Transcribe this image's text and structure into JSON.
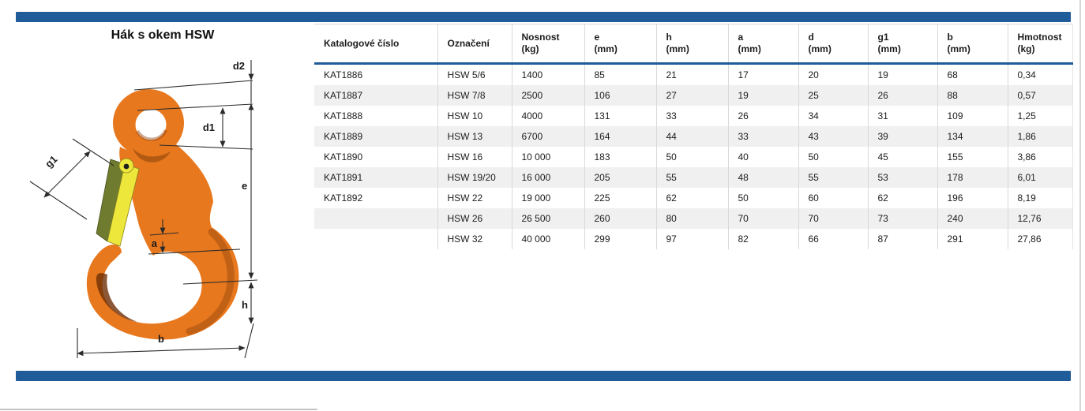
{
  "page": {
    "title": "Hák s okem HSW"
  },
  "diagram": {
    "labels": {
      "d2": "d2",
      "d1": "d1",
      "e": "e",
      "g1": "g1",
      "a": "a",
      "h": "h",
      "b": "b"
    },
    "colors": {
      "hook_orange": "#e8781e",
      "hook_shadow": "#7c3a06",
      "latch_yellow": "#ece73a",
      "latch_olive": "#6f7c2f",
      "dimension_line": "#2b2b2b"
    }
  },
  "table": {
    "headers": [
      {
        "line1": "Katalogové číslo",
        "line2": ""
      },
      {
        "line1": "Označení",
        "line2": ""
      },
      {
        "line1": "Nosnost",
        "line2": "(kg)"
      },
      {
        "line1": "e",
        "line2": "(mm)"
      },
      {
        "line1": "h",
        "line2": "(mm)"
      },
      {
        "line1": "a",
        "line2": "(mm)"
      },
      {
        "line1": "d",
        "line2": "(mm)"
      },
      {
        "line1": "g1",
        "line2": "(mm)"
      },
      {
        "line1": "b",
        "line2": "(mm)"
      },
      {
        "line1": "Hmotnost",
        "line2": "(kg)"
      }
    ],
    "rows": [
      [
        "KAT1886",
        "HSW 5/6",
        "1400",
        "85",
        "21",
        "17",
        "20",
        "19",
        "68",
        "0,34"
      ],
      [
        "KAT1887",
        "HSW 7/8",
        "2500",
        "106",
        "27",
        "19",
        "25",
        "26",
        "88",
        "0,57"
      ],
      [
        "KAT1888",
        "HSW 10",
        "4000",
        "131",
        "33",
        "26",
        "34",
        "31",
        "109",
        "1,25"
      ],
      [
        "KAT1889",
        "HSW 13",
        "6700",
        "164",
        "44",
        "33",
        "43",
        "39",
        "134",
        "1,86"
      ],
      [
        "KAT1890",
        "HSW 16",
        "10 000",
        "183",
        "50",
        "40",
        "50",
        "45",
        "155",
        "3,86"
      ],
      [
        "KAT1891",
        "HSW 19/20",
        "16 000",
        "205",
        "55",
        "48",
        "55",
        "53",
        "178",
        "6,01"
      ],
      [
        "KAT1892",
        "HSW 22",
        "19 000",
        "225",
        "62",
        "50",
        "60",
        "62",
        "196",
        "8,19"
      ],
      [
        "",
        "HSW 26",
        "26 500",
        "260",
        "80",
        "70",
        "70",
        "73",
        "240",
        "12,76"
      ],
      [
        "",
        "HSW 32",
        "40 000",
        "299",
        "97",
        "82",
        "66",
        "87",
        "291",
        "27,86"
      ]
    ]
  },
  "accents": {
    "bar_blue": "#1f5c99",
    "row_stripe": "#f0f0f0",
    "grid_line": "#d9d9d9"
  }
}
